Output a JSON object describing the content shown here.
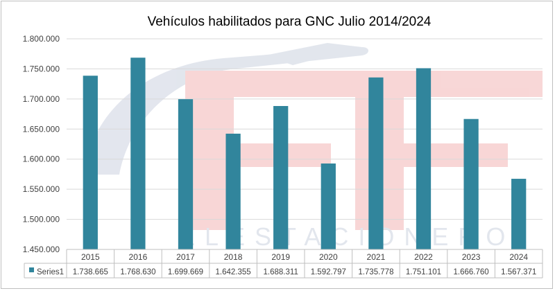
{
  "chart_data": {
    "type": "bar",
    "title": "Vehículos habilitados para GNC Julio 2014/2024",
    "categories": [
      "2015",
      "2016",
      "2017",
      "2018",
      "2019",
      "2020",
      "2021",
      "2022",
      "2023",
      "2024"
    ],
    "series": [
      {
        "name": "Series1",
        "values": [
          1738665,
          1768630,
          1699669,
          1642355,
          1688311,
          1592797,
          1735778,
          1751101,
          1666760,
          1567371
        ],
        "value_labels": [
          "1.738.665",
          "1.768.630",
          "1.699.669",
          "1.642.355",
          "1.688.311",
          "1.592.797",
          "1.735.778",
          "1.751.101",
          "1.666.760",
          "1.567.371"
        ]
      }
    ],
    "ylim": [
      1450000,
      1800000
    ],
    "yticks": [
      1450000,
      1500000,
      1550000,
      1600000,
      1650000,
      1700000,
      1750000,
      1800000
    ],
    "ytick_labels": [
      "1.450.000",
      "1.500.000",
      "1.550.000",
      "1.600.000",
      "1.650.000",
      "1.700.000",
      "1.750.000",
      "1.800.000"
    ],
    "grid": true,
    "legend_placement": "data-table-below",
    "bar_color": "#31859c",
    "watermark_text": "ELESTACIONERO"
  }
}
